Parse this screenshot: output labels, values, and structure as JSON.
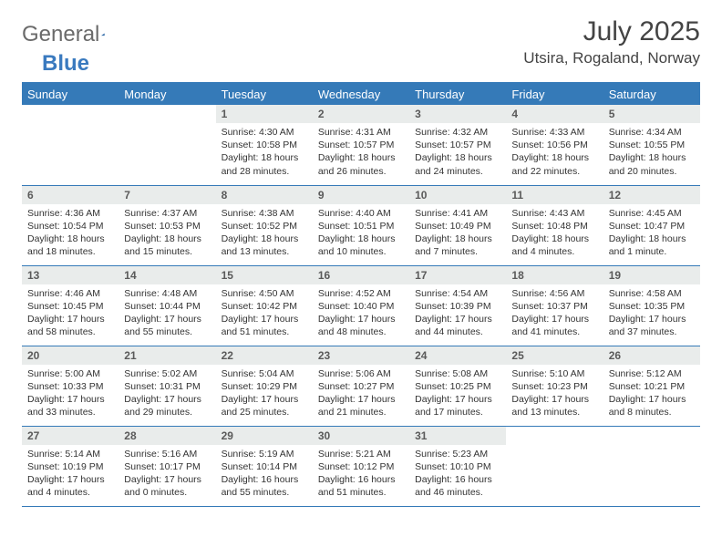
{
  "brand": {
    "part1": "General",
    "part2": "Blue"
  },
  "title": "July 2025",
  "location": "Utsira, Rogaland, Norway",
  "colors": {
    "header_bar": "#357ab8",
    "daynum_bg": "#e9eceb",
    "row_rule": "#357ab8",
    "title_color": "#444444",
    "text_color": "#333333"
  },
  "weekdays": [
    "Sunday",
    "Monday",
    "Tuesday",
    "Wednesday",
    "Thursday",
    "Friday",
    "Saturday"
  ],
  "weeks": [
    [
      {
        "empty": true
      },
      {
        "empty": true
      },
      {
        "n": "1",
        "sunrise": "4:30 AM",
        "sunset": "10:58 PM",
        "daylight": "18 hours and 28 minutes."
      },
      {
        "n": "2",
        "sunrise": "4:31 AM",
        "sunset": "10:57 PM",
        "daylight": "18 hours and 26 minutes."
      },
      {
        "n": "3",
        "sunrise": "4:32 AM",
        "sunset": "10:57 PM",
        "daylight": "18 hours and 24 minutes."
      },
      {
        "n": "4",
        "sunrise": "4:33 AM",
        "sunset": "10:56 PM",
        "daylight": "18 hours and 22 minutes."
      },
      {
        "n": "5",
        "sunrise": "4:34 AM",
        "sunset": "10:55 PM",
        "daylight": "18 hours and 20 minutes."
      }
    ],
    [
      {
        "n": "6",
        "sunrise": "4:36 AM",
        "sunset": "10:54 PM",
        "daylight": "18 hours and 18 minutes."
      },
      {
        "n": "7",
        "sunrise": "4:37 AM",
        "sunset": "10:53 PM",
        "daylight": "18 hours and 15 minutes."
      },
      {
        "n": "8",
        "sunrise": "4:38 AM",
        "sunset": "10:52 PM",
        "daylight": "18 hours and 13 minutes."
      },
      {
        "n": "9",
        "sunrise": "4:40 AM",
        "sunset": "10:51 PM",
        "daylight": "18 hours and 10 minutes."
      },
      {
        "n": "10",
        "sunrise": "4:41 AM",
        "sunset": "10:49 PM",
        "daylight": "18 hours and 7 minutes."
      },
      {
        "n": "11",
        "sunrise": "4:43 AM",
        "sunset": "10:48 PM",
        "daylight": "18 hours and 4 minutes."
      },
      {
        "n": "12",
        "sunrise": "4:45 AM",
        "sunset": "10:47 PM",
        "daylight": "18 hours and 1 minute."
      }
    ],
    [
      {
        "n": "13",
        "sunrise": "4:46 AM",
        "sunset": "10:45 PM",
        "daylight": "17 hours and 58 minutes."
      },
      {
        "n": "14",
        "sunrise": "4:48 AM",
        "sunset": "10:44 PM",
        "daylight": "17 hours and 55 minutes."
      },
      {
        "n": "15",
        "sunrise": "4:50 AM",
        "sunset": "10:42 PM",
        "daylight": "17 hours and 51 minutes."
      },
      {
        "n": "16",
        "sunrise": "4:52 AM",
        "sunset": "10:40 PM",
        "daylight": "17 hours and 48 minutes."
      },
      {
        "n": "17",
        "sunrise": "4:54 AM",
        "sunset": "10:39 PM",
        "daylight": "17 hours and 44 minutes."
      },
      {
        "n": "18",
        "sunrise": "4:56 AM",
        "sunset": "10:37 PM",
        "daylight": "17 hours and 41 minutes."
      },
      {
        "n": "19",
        "sunrise": "4:58 AM",
        "sunset": "10:35 PM",
        "daylight": "17 hours and 37 minutes."
      }
    ],
    [
      {
        "n": "20",
        "sunrise": "5:00 AM",
        "sunset": "10:33 PM",
        "daylight": "17 hours and 33 minutes."
      },
      {
        "n": "21",
        "sunrise": "5:02 AM",
        "sunset": "10:31 PM",
        "daylight": "17 hours and 29 minutes."
      },
      {
        "n": "22",
        "sunrise": "5:04 AM",
        "sunset": "10:29 PM",
        "daylight": "17 hours and 25 minutes."
      },
      {
        "n": "23",
        "sunrise": "5:06 AM",
        "sunset": "10:27 PM",
        "daylight": "17 hours and 21 minutes."
      },
      {
        "n": "24",
        "sunrise": "5:08 AM",
        "sunset": "10:25 PM",
        "daylight": "17 hours and 17 minutes."
      },
      {
        "n": "25",
        "sunrise": "5:10 AM",
        "sunset": "10:23 PM",
        "daylight": "17 hours and 13 minutes."
      },
      {
        "n": "26",
        "sunrise": "5:12 AM",
        "sunset": "10:21 PM",
        "daylight": "17 hours and 8 minutes."
      }
    ],
    [
      {
        "n": "27",
        "sunrise": "5:14 AM",
        "sunset": "10:19 PM",
        "daylight": "17 hours and 4 minutes."
      },
      {
        "n": "28",
        "sunrise": "5:16 AM",
        "sunset": "10:17 PM",
        "daylight": "17 hours and 0 minutes."
      },
      {
        "n": "29",
        "sunrise": "5:19 AM",
        "sunset": "10:14 PM",
        "daylight": "16 hours and 55 minutes."
      },
      {
        "n": "30",
        "sunrise": "5:21 AM",
        "sunset": "10:12 PM",
        "daylight": "16 hours and 51 minutes."
      },
      {
        "n": "31",
        "sunrise": "5:23 AM",
        "sunset": "10:10 PM",
        "daylight": "16 hours and 46 minutes."
      },
      {
        "empty": true
      },
      {
        "empty": true
      }
    ]
  ]
}
